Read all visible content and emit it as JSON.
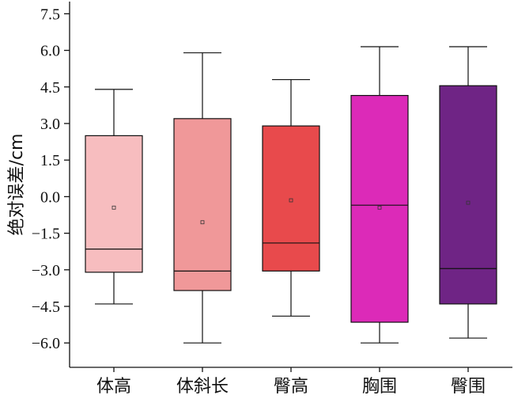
{
  "chart_data": {
    "type": "box",
    "title": "",
    "xlabel": "",
    "ylabel": "绝对误差/cm",
    "ylim": [
      -7.0,
      8.0
    ],
    "yticks": [
      -6.0,
      -4.5,
      -3.0,
      -1.5,
      0.0,
      1.5,
      3.0,
      4.5,
      6.0,
      7.5
    ],
    "ytick_labels": [
      "−6.0",
      "−4.5",
      "−3.0",
      "−1.5",
      "0.0",
      "1.5",
      "3.0",
      "4.5",
      "6.0",
      "7.5"
    ],
    "categories": [
      "体高",
      "体斜长",
      "臀高",
      "胸围",
      "臀围"
    ],
    "boxes": [
      {
        "category": "体高",
        "whisker_low": -4.4,
        "q1": -3.1,
        "median": -2.15,
        "q3": 2.5,
        "whisker_high": 4.4,
        "mean": -0.45,
        "color": "#f7bdbf"
      },
      {
        "category": "体斜长",
        "whisker_low": -6.0,
        "q1": -3.85,
        "median": -3.05,
        "q3": 3.2,
        "whisker_high": 5.9,
        "mean": -1.05,
        "color": "#f09899"
      },
      {
        "category": "臀高",
        "whisker_low": -4.9,
        "q1": -3.05,
        "median": -1.9,
        "q3": 2.9,
        "whisker_high": 4.8,
        "mean": -0.15,
        "color": "#e84a4c"
      },
      {
        "category": "胸围",
        "whisker_low": -6.0,
        "q1": -5.15,
        "median": -0.35,
        "q3": 4.15,
        "whisker_high": 6.15,
        "mean": -0.45,
        "color": "#dc2ab8"
      },
      {
        "category": "臀围",
        "whisker_low": -5.8,
        "q1": -4.4,
        "median": -2.95,
        "q3": 4.55,
        "whisker_high": 6.15,
        "mean": -0.25,
        "color": "#6f2485"
      }
    ],
    "grid": false,
    "legend": "none"
  }
}
